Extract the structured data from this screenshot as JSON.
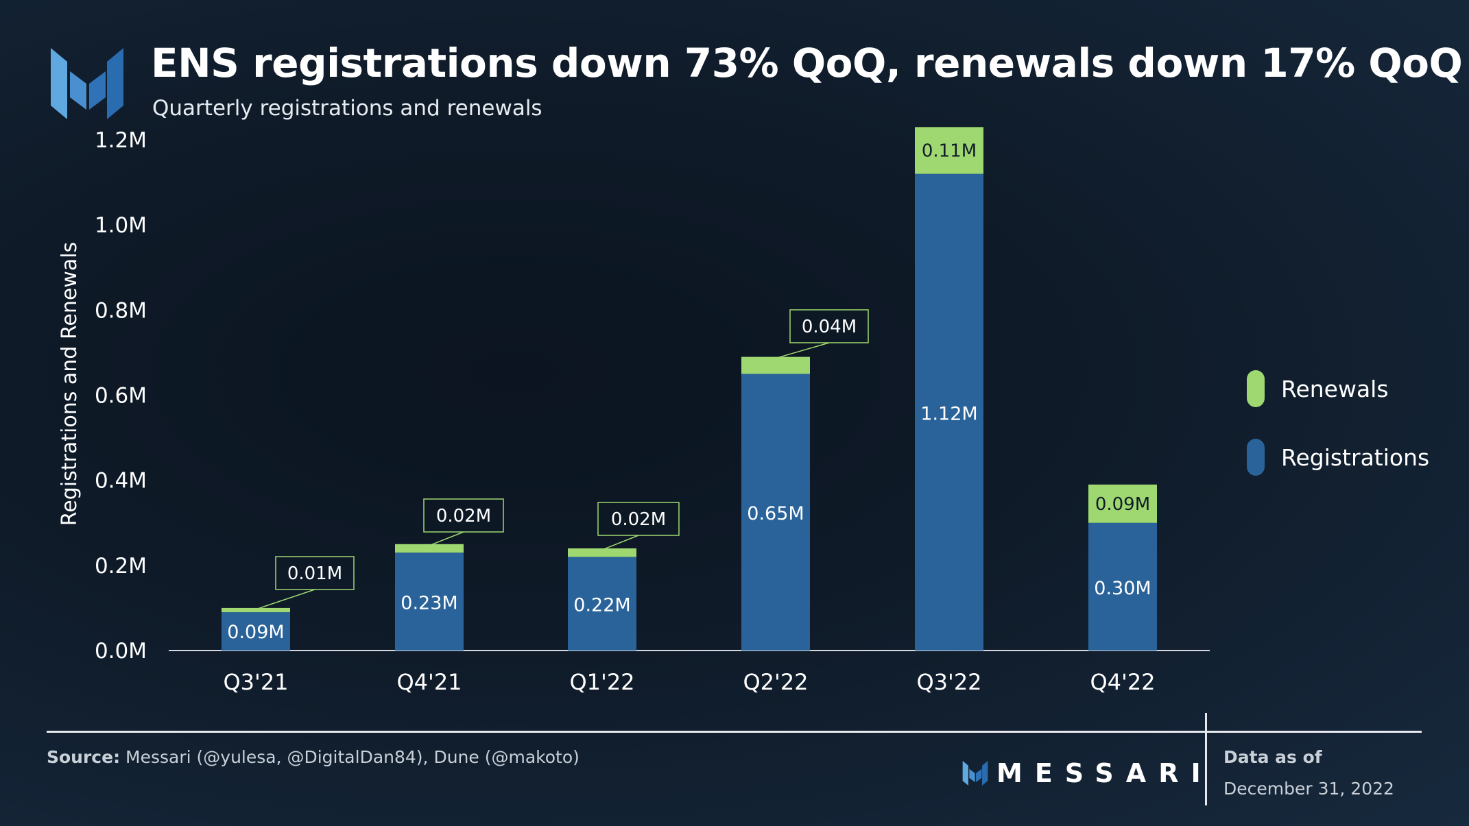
{
  "header": {
    "title": "ENS registrations down 73% QoQ, renewals down 17% QoQ",
    "subtitle": "Quarterly registrations and renewals"
  },
  "colors": {
    "registrations": "#2a6399",
    "renewals": "#9fd870",
    "background": "#0f1b29",
    "logo_light": "#5fa8e0",
    "logo_dark": "#2a6cb0"
  },
  "chart_data": {
    "type": "bar",
    "stacked": true,
    "categories": [
      "Q3'21",
      "Q4'21",
      "Q1'22",
      "Q2'22",
      "Q3'22",
      "Q4'22"
    ],
    "series": [
      {
        "name": "Registrations",
        "values": [
          0.09,
          0.23,
          0.22,
          0.65,
          1.12,
          0.3
        ],
        "labels": [
          "0.09M",
          "0.23M",
          "0.22M",
          "0.65M",
          "1.12M",
          "0.30M"
        ]
      },
      {
        "name": "Renewals",
        "values": [
          0.01,
          0.02,
          0.02,
          0.04,
          0.11,
          0.09
        ],
        "labels": [
          "0.01M",
          "0.02M",
          "0.02M",
          "0.04M",
          "0.11M",
          "0.09M"
        ]
      }
    ],
    "ylabel": "Registrations and Renewals",
    "ylim": [
      0,
      1.2
    ],
    "yticks": [
      0,
      0.2,
      0.4,
      0.6,
      0.8,
      1.0,
      1.2
    ],
    "ytick_labels": [
      "0.0M",
      "0.2M",
      "0.4M",
      "0.6M",
      "0.8M",
      "1.0M",
      "1.2M"
    ],
    "grid": false,
    "legend_position": "right"
  },
  "legend": {
    "renewals_label": "Renewals",
    "registrations_label": "Registrations"
  },
  "footer": {
    "source_prefix": "Source:",
    "source_text": " Messari (@yulesa, @DigitalDan84), Dune (@makoto)",
    "brand": "MESSARI",
    "data_as_of": "Data as of",
    "date": "December 31, 2022"
  }
}
